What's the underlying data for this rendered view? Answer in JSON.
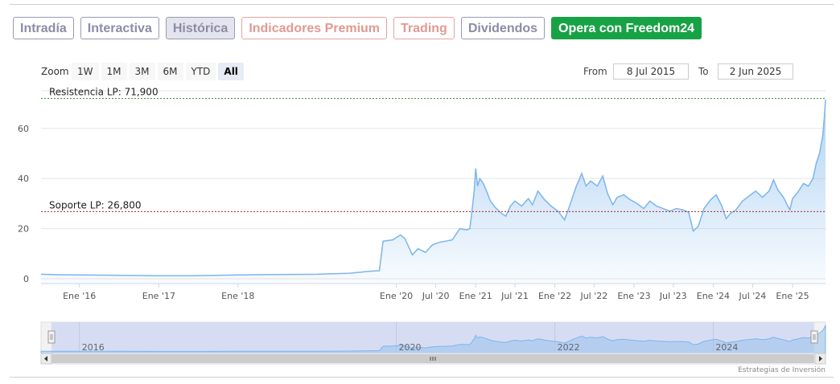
{
  "tabs": [
    {
      "label": "Intradía",
      "style": "gray"
    },
    {
      "label": "Interactiva",
      "style": "gray"
    },
    {
      "label": "Histórica",
      "style": "active"
    },
    {
      "label": "Indicadores Premium",
      "style": "red"
    },
    {
      "label": "Trading",
      "style": "red"
    },
    {
      "label": "Dividendos",
      "style": "gray"
    },
    {
      "label": "Opera con Freedom24",
      "style": "green"
    }
  ],
  "zoom": {
    "label": "Zoom",
    "buttons": [
      "1W",
      "1M",
      "3M",
      "6M",
      "YTD",
      "All"
    ],
    "selected": "All"
  },
  "range": {
    "from_label": "From",
    "from_value": "8 Jul 2015",
    "to_label": "To",
    "to_value": "2 Jun 2025"
  },
  "credit": "Estrategias de Inversión",
  "colors": {
    "line": "#7cb5ec",
    "resistance": "#2e8b2e",
    "support": "#b22222",
    "green_button": "#18a246"
  },
  "chart_data": {
    "type": "area",
    "x_start": "2015-07-08",
    "x_end": "2025-06-02",
    "ylim": [
      0,
      75
    ],
    "y_ticks": [
      0,
      20,
      40,
      60
    ],
    "x_ticks": [
      "Ene '16",
      "Ene '17",
      "Ene '18",
      "Ene '20",
      "Jul '20",
      "Ene '21",
      "Jul '21",
      "Ene '22",
      "Jul '22",
      "Ene '23",
      "Jul '23",
      "Ene '24",
      "Jul '24",
      "Ene '25"
    ],
    "navigator_ticks": [
      "2016",
      "2020",
      "2022",
      "2024"
    ],
    "annotations": [
      {
        "label": "Resistencia LP: 71,900",
        "value": 71.9
      },
      {
        "label": "Soporte LP: 26,800",
        "value": 26.8
      }
    ],
    "series": [
      {
        "points": [
          [
            "2015-07-08",
            1.8
          ],
          [
            "2015-10-01",
            1.6
          ],
          [
            "2016-01-01",
            1.5
          ],
          [
            "2016-06-01",
            1.4
          ],
          [
            "2017-01-01",
            1.2
          ],
          [
            "2017-06-01",
            1.2
          ],
          [
            "2018-01-01",
            1.5
          ],
          [
            "2018-06-01",
            1.7
          ],
          [
            "2019-01-01",
            1.8
          ],
          [
            "2019-06-01",
            2.2
          ],
          [
            "2019-09-01",
            3.0
          ],
          [
            "2019-10-15",
            3.2
          ],
          [
            "2019-11-01",
            15.0
          ],
          [
            "2019-12-15",
            15.5
          ],
          [
            "2020-01-20",
            17.5
          ],
          [
            "2020-02-10",
            16.0
          ],
          [
            "2020-03-15",
            9.5
          ],
          [
            "2020-04-10",
            12.0
          ],
          [
            "2020-05-15",
            10.5
          ],
          [
            "2020-06-15",
            13.5
          ],
          [
            "2020-07-15",
            14.5
          ],
          [
            "2020-08-15",
            15.0
          ],
          [
            "2020-09-15",
            15.5
          ],
          [
            "2020-10-20",
            20.0
          ],
          [
            "2020-11-20",
            19.5
          ],
          [
            "2020-12-05",
            20.0
          ],
          [
            "2020-12-15",
            27.0
          ],
          [
            "2020-12-25",
            35.0
          ],
          [
            "2021-01-01",
            44.0
          ],
          [
            "2021-01-10",
            37.0
          ],
          [
            "2021-01-20",
            40.0
          ],
          [
            "2021-02-05",
            38.0
          ],
          [
            "2021-02-20",
            35.0
          ],
          [
            "2021-03-10",
            31.0
          ],
          [
            "2021-04-01",
            28.5
          ],
          [
            "2021-05-01",
            26.0
          ],
          [
            "2021-05-20",
            25.0
          ],
          [
            "2021-06-10",
            29.0
          ],
          [
            "2021-07-01",
            31.0
          ],
          [
            "2021-08-01",
            29.0
          ],
          [
            "2021-09-01",
            32.0
          ],
          [
            "2021-09-20",
            29.5
          ],
          [
            "2021-10-15",
            35.0
          ],
          [
            "2021-11-15",
            31.5
          ],
          [
            "2021-12-15",
            29.0
          ],
          [
            "2022-01-15",
            27.0
          ],
          [
            "2022-02-15",
            23.5
          ],
          [
            "2022-03-10",
            29.0
          ],
          [
            "2022-04-10",
            37.0
          ],
          [
            "2022-05-05",
            42.0
          ],
          [
            "2022-05-25",
            37.0
          ],
          [
            "2022-06-15",
            39.0
          ],
          [
            "2022-07-15",
            37.0
          ],
          [
            "2022-08-10",
            41.0
          ],
          [
            "2022-09-01",
            34.0
          ],
          [
            "2022-09-25",
            29.5
          ],
          [
            "2022-10-15",
            32.5
          ],
          [
            "2022-11-15",
            33.5
          ],
          [
            "2022-12-15",
            31.5
          ],
          [
            "2023-01-15",
            30.0
          ],
          [
            "2023-02-15",
            28.0
          ],
          [
            "2023-03-15",
            31.0
          ],
          [
            "2023-04-15",
            29.0
          ],
          [
            "2023-05-15",
            28.0
          ],
          [
            "2023-06-15",
            27.0
          ],
          [
            "2023-07-15",
            28.0
          ],
          [
            "2023-08-15",
            27.5
          ],
          [
            "2023-09-10",
            26.5
          ],
          [
            "2023-10-01",
            19.0
          ],
          [
            "2023-10-25",
            21.0
          ],
          [
            "2023-11-20",
            28.0
          ],
          [
            "2023-12-20",
            31.5
          ],
          [
            "2024-01-15",
            33.5
          ],
          [
            "2024-02-10",
            29.0
          ],
          [
            "2024-03-01",
            24.0
          ],
          [
            "2024-03-20",
            26.0
          ],
          [
            "2024-04-15",
            27.5
          ],
          [
            "2024-05-15",
            31.0
          ],
          [
            "2024-06-15",
            33.0
          ],
          [
            "2024-07-15",
            35.0
          ],
          [
            "2024-08-15",
            32.5
          ],
          [
            "2024-09-15",
            35.0
          ],
          [
            "2024-10-05",
            39.5
          ],
          [
            "2024-10-25",
            35.5
          ],
          [
            "2024-11-20",
            32.5
          ],
          [
            "2024-12-10",
            29.0
          ],
          [
            "2024-12-20",
            27.5
          ],
          [
            "2025-01-01",
            32.0
          ],
          [
            "2025-01-25",
            34.5
          ],
          [
            "2025-02-20",
            38.0
          ],
          [
            "2025-03-15",
            37.0
          ],
          [
            "2025-04-05",
            40.0
          ],
          [
            "2025-04-20",
            46.0
          ],
          [
            "2025-05-05",
            50.0
          ],
          [
            "2025-05-20",
            57.0
          ],
          [
            "2025-05-28",
            65.0
          ],
          [
            "2025-06-02",
            71.5
          ]
        ]
      }
    ]
  }
}
